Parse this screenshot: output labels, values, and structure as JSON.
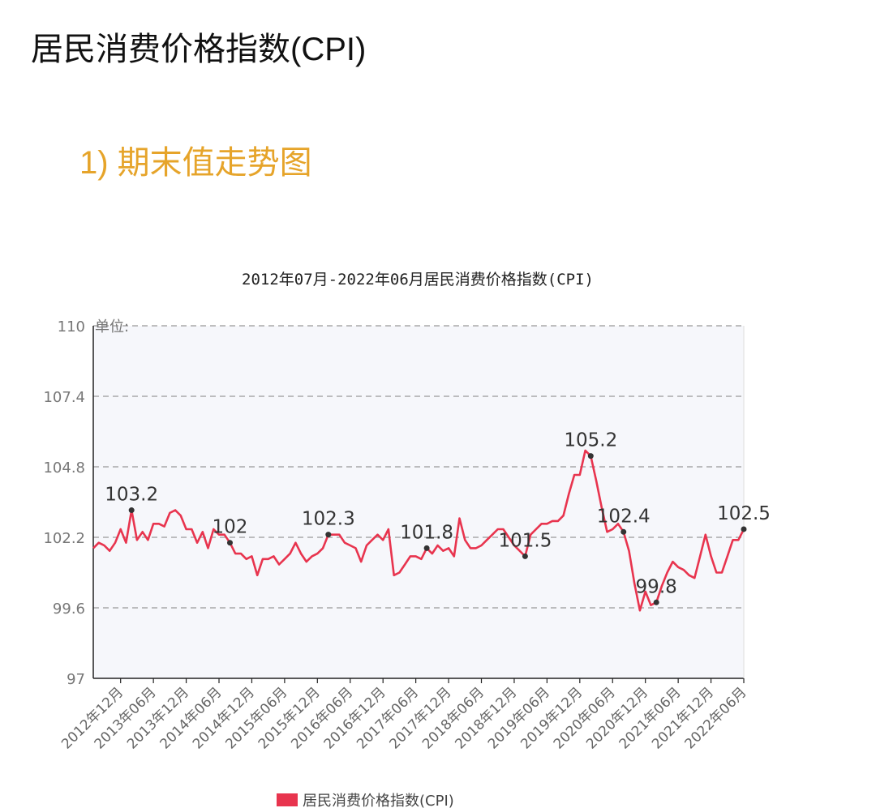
{
  "page": {
    "title": "居民消费价格指数(CPI)",
    "section_title": "1) 期末值走势图"
  },
  "chart_data": {
    "type": "line",
    "title": "2012年07月-2022年06月居民消费价格指数(CPI)",
    "unit_label": "单位:",
    "ylim": [
      97,
      110
    ],
    "yticks": [
      110,
      107.4,
      104.8,
      102.2,
      99.6,
      97
    ],
    "grid": true,
    "legend_position": "bottom",
    "line_color": "#e8344e",
    "xtick_labels": [
      "2012年12月",
      "2013年06月",
      "2013年12月",
      "2014年06月",
      "2014年12月",
      "2015年06月",
      "2015年12月",
      "2016年06月",
      "2016年12月",
      "2017年06月",
      "2017年12月",
      "2018年06月",
      "2018年12月",
      "2019年06月",
      "2019年12月",
      "2020年06月",
      "2020年12月",
      "2021年06月",
      "2021年12月",
      "2022年06月"
    ],
    "series": [
      {
        "name": "居民消费价格指数(CPI)",
        "start": "2012年07月",
        "end": "2022年06月",
        "values": [
          101.8,
          102.0,
          101.9,
          101.7,
          102.0,
          102.5,
          102.0,
          103.2,
          102.1,
          102.4,
          102.1,
          102.7,
          102.7,
          102.6,
          103.1,
          103.2,
          103.0,
          102.5,
          102.5,
          102.0,
          102.4,
          101.8,
          102.5,
          102.3,
          102.3,
          102.0,
          101.6,
          101.6,
          101.4,
          101.5,
          100.8,
          101.4,
          101.4,
          101.5,
          101.2,
          101.4,
          101.6,
          102.0,
          101.6,
          101.3,
          101.5,
          101.6,
          101.8,
          102.3,
          102.3,
          102.3,
          102.0,
          101.9,
          101.8,
          101.3,
          101.9,
          102.1,
          102.3,
          102.1,
          102.5,
          100.8,
          100.9,
          101.2,
          101.5,
          101.5,
          101.4,
          101.8,
          101.6,
          101.9,
          101.7,
          101.8,
          101.5,
          102.9,
          102.1,
          101.8,
          101.8,
          101.9,
          102.1,
          102.3,
          102.5,
          102.5,
          102.2,
          101.9,
          101.7,
          101.5,
          102.3,
          102.5,
          102.7,
          102.7,
          102.8,
          102.8,
          103.0,
          103.8,
          104.5,
          104.5,
          105.4,
          105.2,
          104.3,
          103.3,
          102.4,
          102.5,
          102.7,
          102.4,
          101.7,
          100.5,
          99.5,
          100.2,
          99.7,
          99.8,
          100.4,
          100.9,
          101.3,
          101.1,
          101.0,
          100.8,
          100.7,
          101.5,
          102.3,
          101.5,
          100.9,
          100.9,
          101.5,
          102.1,
          102.1,
          102.5
        ]
      }
    ],
    "annotations": [
      {
        "label": "103.2",
        "index": 7
      },
      {
        "label": "102",
        "index": 25
      },
      {
        "label": "102.3",
        "index": 43
      },
      {
        "label": "101.8",
        "index": 61
      },
      {
        "label": "101.5",
        "index": 79
      },
      {
        "label": "105.2",
        "index": 91
      },
      {
        "label": "102.4",
        "index": 97
      },
      {
        "label": "99.8",
        "index": 103
      },
      {
        "label": "102.5",
        "index": 119
      }
    ]
  }
}
